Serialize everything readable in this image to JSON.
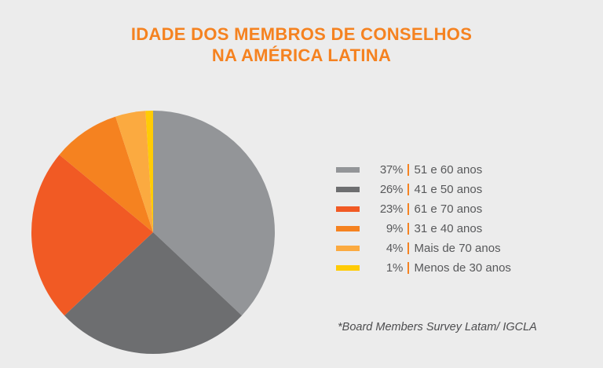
{
  "chart_data": {
    "type": "pie",
    "title": "IDADE DOS MEMBROS DE CONSELHOS NA AMÉRICA LATINA",
    "title_lines": [
      "IDADE DOS MEMBROS DE CONSELHOS",
      "NA AMÉRICA LATINA"
    ],
    "start_angle": "12 o'clock",
    "direction": "clockwise",
    "legend_position": "right",
    "slices": [
      {
        "label": "51 e 60 anos",
        "value": 37,
        "pct_label": "37%",
        "color": "#939598"
      },
      {
        "label": "41 e 50 anos",
        "value": 26,
        "pct_label": "26%",
        "color": "#6d6e70"
      },
      {
        "label": "61 e 70 anos",
        "value": 23,
        "pct_label": "23%",
        "color": "#f15a24"
      },
      {
        "label": "31 e 40 anos",
        "value": 9,
        "pct_label": "9%",
        "color": "#f58220"
      },
      {
        "label": "Mais de 70 anos",
        "value": 4,
        "pct_label": "4%",
        "color": "#fbaa40"
      },
      {
        "label": "Menos de 30 anos",
        "value": 1,
        "pct_label": "1%",
        "color": "#ffcb05"
      }
    ],
    "source": "*Board Members Survey Latam/ IGCLA"
  }
}
